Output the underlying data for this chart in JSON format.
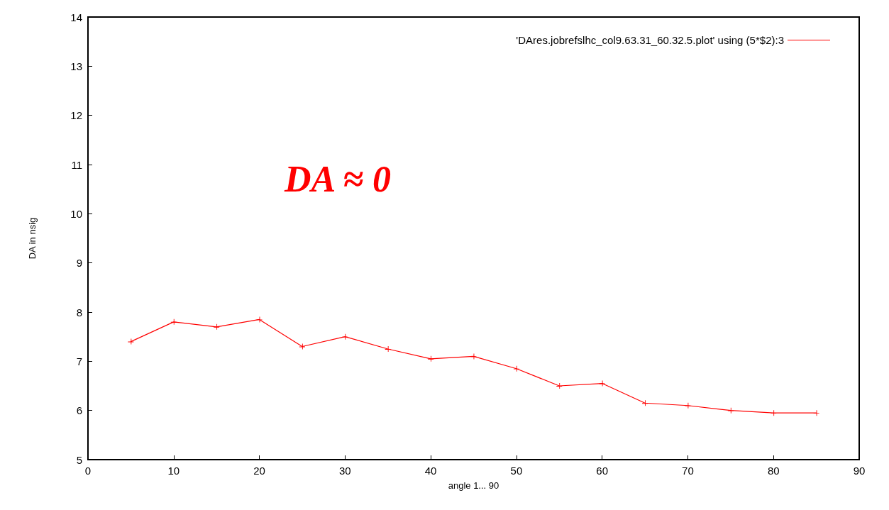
{
  "chart_data": {
    "type": "line",
    "xlabel": "angle 1... 90",
    "ylabel": "DA in nsig",
    "x": [
      5,
      10,
      15,
      20,
      25,
      30,
      35,
      40,
      45,
      50,
      55,
      60,
      65,
      70,
      75,
      80,
      85
    ],
    "series": [
      {
        "name": "'DAres.jobrefslhc_col9.63.31_60.32.5.plot' using (5*$2):3",
        "color": "#ff0000",
        "values": [
          7.4,
          7.8,
          7.7,
          7.85,
          7.3,
          7.5,
          7.25,
          7.05,
          7.1,
          6.85,
          6.5,
          6.55,
          6.15,
          6.1,
          6.0,
          5.95,
          5.95
        ]
      }
    ],
    "xlim": [
      0,
      90
    ],
    "xticks": [
      0,
      10,
      20,
      30,
      40,
      50,
      60,
      70,
      80,
      90
    ],
    "ylim": [
      5,
      14
    ],
    "yticks": [
      5,
      6,
      7,
      8,
      9,
      10,
      11,
      12,
      13,
      14
    ],
    "annotations": [
      "DA ≈ 0"
    ],
    "legend": "top right",
    "marker": "cross",
    "line_style": "solid",
    "grid": false
  }
}
